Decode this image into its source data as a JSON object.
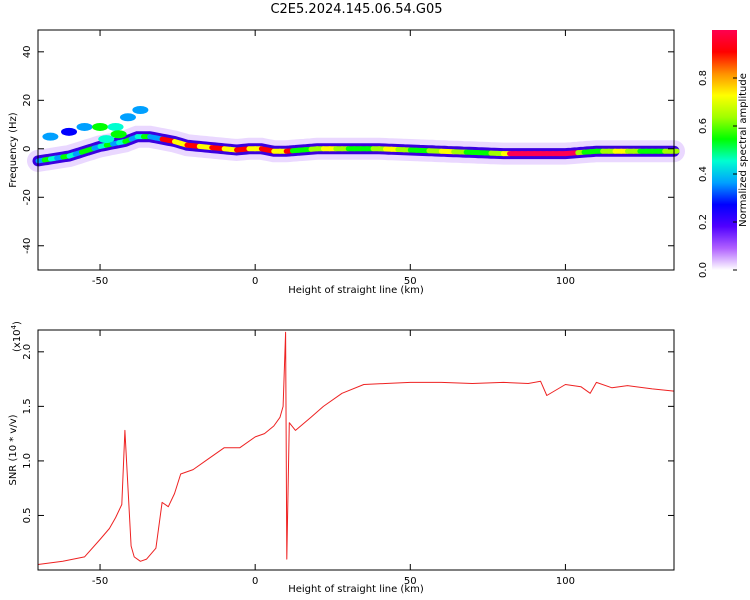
{
  "title": "C2E5.2024.145.06.54.G05",
  "chart_data": [
    {
      "type": "heatmap",
      "xlabel": "Height of straight line (km)",
      "ylabel": "Frequency (Hz)",
      "xlim": [
        -70,
        135
      ],
      "ylim": [
        -50,
        49
      ],
      "x_ticks": [
        -50,
        0,
        50,
        100
      ],
      "y_ticks": [
        -40,
        -20,
        0,
        20,
        40
      ],
      "ridge": {
        "x": [
          -70,
          -60,
          -50,
          -42,
          -38,
          -34,
          -30,
          -26,
          -22,
          -18,
          -14,
          -10,
          -6,
          -2,
          2,
          6,
          10,
          20,
          40,
          60,
          80,
          100,
          110,
          120,
          135
        ],
        "y": [
          -5,
          -3,
          1,
          3,
          5,
          5,
          4,
          3,
          1.5,
          1,
          0.5,
          0,
          -0.5,
          0,
          0,
          -1,
          -1,
          0,
          0,
          -1,
          -2,
          -2,
          -1,
          -1,
          -1
        ]
      },
      "colorbar": {
        "label": "Normalized spectral amplitude",
        "range": [
          0,
          1
        ],
        "ticks": [
          0.0,
          0.2,
          0.4,
          0.6,
          0.8
        ],
        "colors": [
          "#ffffff",
          "#b060ff",
          "#5000ff",
          "#0000ff",
          "#00a0ff",
          "#00ffd0",
          "#00ff00",
          "#a0ff00",
          "#ffff00",
          "#ff9000",
          "#ff0000",
          "#ff0050"
        ]
      }
    },
    {
      "type": "line",
      "xlabel": "Height of straight line (km)",
      "ylabel": "SNR (10 * v/v)",
      "y_multiplier": "(x10",
      "y_multiplier_exp": "4",
      "y_multiplier_close": ")",
      "xlim": [
        -70,
        135
      ],
      "ylim": [
        0,
        2.2
      ],
      "x_ticks": [
        -50,
        0,
        50,
        100
      ],
      "y_ticks": [
        0.5,
        1.0,
        1.5,
        2.0
      ],
      "series": [
        {
          "color": "#ee2222",
          "x": [
            -70,
            -62,
            -55,
            -50,
            -47,
            -45,
            -43,
            -42,
            -41,
            -40,
            -39,
            -37,
            -35,
            -32,
            -30,
            -28,
            -26,
            -24,
            -20,
            -15,
            -10,
            -5,
            0,
            3,
            6,
            8,
            9,
            9.8,
            10.2,
            11,
            13,
            18,
            22,
            28,
            35,
            42,
            50,
            60,
            70,
            80,
            88,
            92,
            94,
            100,
            105,
            108,
            110,
            115,
            120,
            128,
            135
          ],
          "y": [
            0.05,
            0.08,
            0.12,
            0.28,
            0.38,
            0.48,
            0.6,
            1.28,
            0.75,
            0.22,
            0.12,
            0.08,
            0.1,
            0.2,
            0.62,
            0.58,
            0.7,
            0.88,
            0.92,
            1.02,
            1.12,
            1.12,
            1.22,
            1.25,
            1.32,
            1.4,
            1.5,
            2.18,
            0.1,
            1.35,
            1.28,
            1.4,
            1.5,
            1.62,
            1.7,
            1.71,
            1.72,
            1.72,
            1.71,
            1.72,
            1.71,
            1.73,
            1.6,
            1.7,
            1.68,
            1.62,
            1.72,
            1.67,
            1.69,
            1.66,
            1.64
          ]
        }
      ]
    }
  ]
}
